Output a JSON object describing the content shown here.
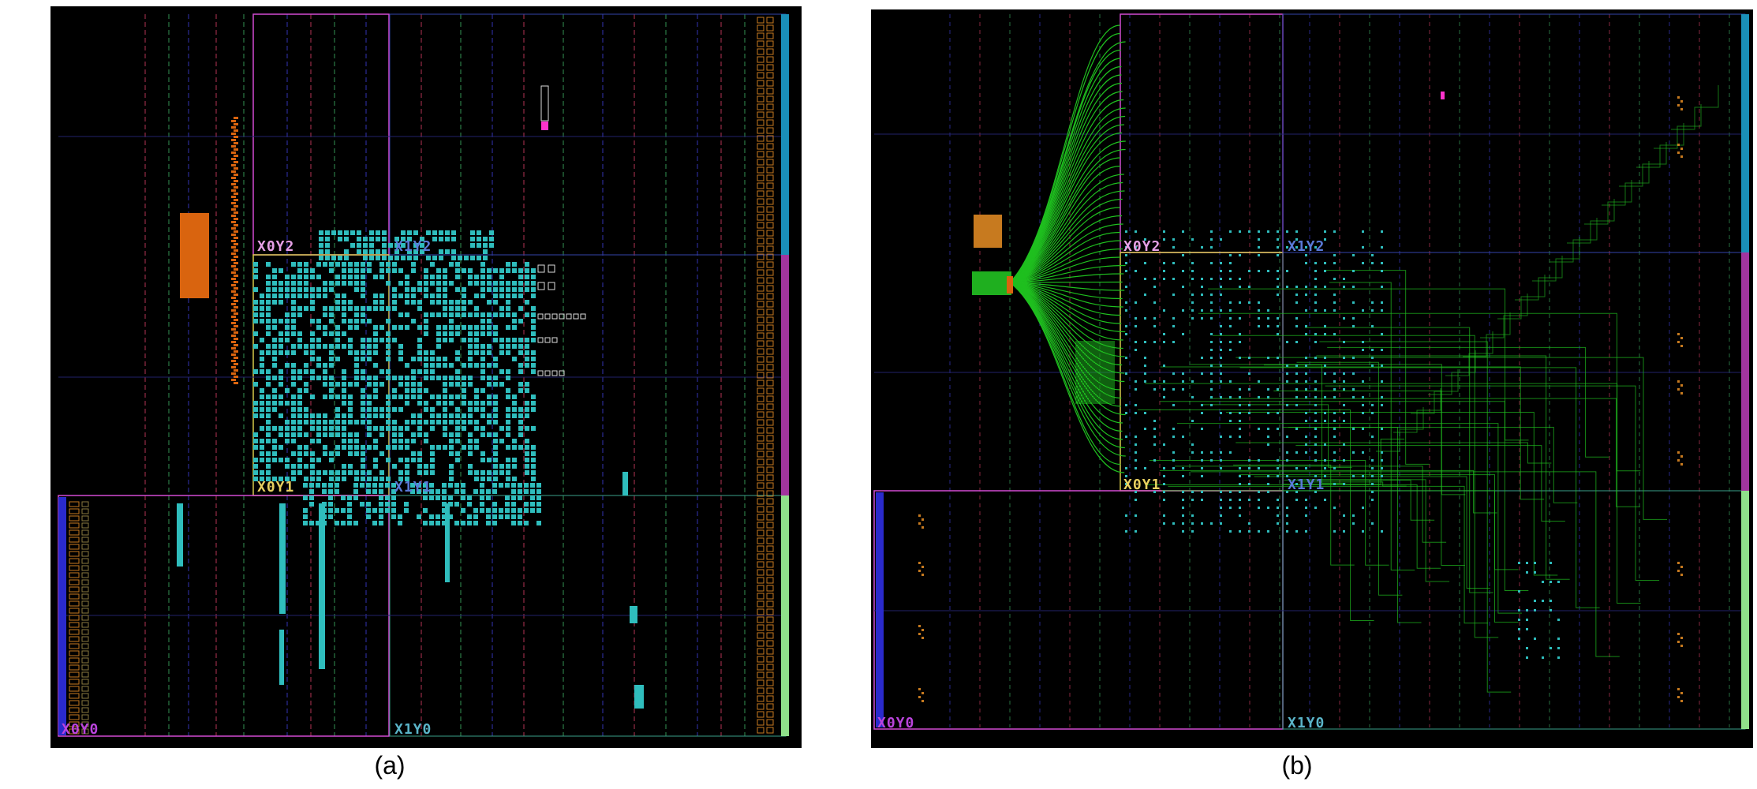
{
  "figure": {
    "captions": [
      "(a)",
      "(b)"
    ]
  },
  "colors": {
    "background": "#000000",
    "cell_fill": "#2fbdbd",
    "route": "#1fbf1f",
    "region_border": "#d24bd2",
    "region_border_alt": "#d6c94a",
    "io_bank": "#c77a1f",
    "highlight": "#ff33cc",
    "orange_block": "#d9640f",
    "label_green": "#a8d86a",
    "label_teal": "#5ab4c8",
    "label_violet": "#bb44dd"
  },
  "panel_a": {
    "clock_region_labels": [
      "X0Y2",
      "X1Y2",
      "X0Y1",
      "X1Y1",
      "X0Y0",
      "X1Y0"
    ]
  },
  "panel_b": {
    "clock_region_labels": [
      "X0Y2",
      "X1Y2",
      "X0Y1",
      "X1Y1",
      "X0Y0",
      "X1Y0"
    ]
  }
}
